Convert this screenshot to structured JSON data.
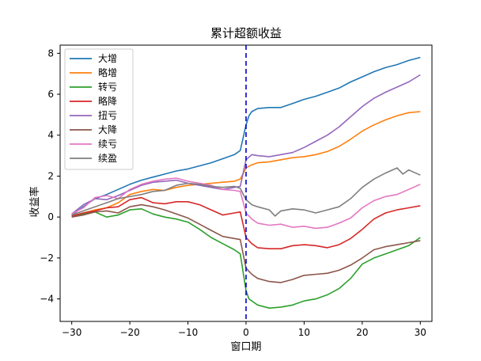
{
  "chart_data": {
    "type": "line",
    "title": "累计超额收益",
    "xlabel": "窗口期",
    "ylabel": "收益率",
    "xlim": [
      -32,
      32
    ],
    "ylim": [
      -5.1,
      8.4
    ],
    "xticks": [
      -30,
      -20,
      -10,
      0,
      10,
      20,
      30
    ],
    "yticks": [
      -4,
      -2,
      0,
      2,
      4,
      6,
      8
    ],
    "xtick_labels": [
      "−30",
      "−20",
      "−10",
      "0",
      "10",
      "20",
      "30"
    ],
    "ytick_labels": [
      "−4",
      "−2",
      "0",
      "2",
      "4",
      "6",
      "8"
    ],
    "vline": {
      "x": 0,
      "color": "#0000cc",
      "style": "dashed"
    },
    "legend_position": "upper-left",
    "grid": false,
    "series": [
      {
        "name": "大增",
        "color": "#1f77b4",
        "points": [
          [
            -30,
            0.1
          ],
          [
            -28,
            0.5
          ],
          [
            -26,
            0.9
          ],
          [
            -24,
            1.1
          ],
          [
            -22,
            1.35
          ],
          [
            -20,
            1.6
          ],
          [
            -18,
            1.8
          ],
          [
            -16,
            1.95
          ],
          [
            -14,
            2.1
          ],
          [
            -12,
            2.25
          ],
          [
            -10,
            2.35
          ],
          [
            -8,
            2.5
          ],
          [
            -6,
            2.65
          ],
          [
            -4,
            2.85
          ],
          [
            -2,
            3.05
          ],
          [
            -1,
            3.25
          ],
          [
            0,
            4.5
          ],
          [
            0.5,
            4.95
          ],
          [
            1,
            5.15
          ],
          [
            2,
            5.3
          ],
          [
            4,
            5.35
          ],
          [
            6,
            5.35
          ],
          [
            8,
            5.55
          ],
          [
            10,
            5.75
          ],
          [
            12,
            5.9
          ],
          [
            14,
            6.1
          ],
          [
            16,
            6.3
          ],
          [
            18,
            6.6
          ],
          [
            20,
            6.85
          ],
          [
            22,
            7.1
          ],
          [
            24,
            7.3
          ],
          [
            26,
            7.45
          ],
          [
            28,
            7.65
          ],
          [
            30,
            7.8
          ]
        ]
      },
      {
        "name": "略增",
        "color": "#ff7f0e",
        "points": [
          [
            -30,
            0.05
          ],
          [
            -28,
            0.2
          ],
          [
            -26,
            0.35
          ],
          [
            -24,
            0.45
          ],
          [
            -22,
            0.7
          ],
          [
            -20,
            1.1
          ],
          [
            -18,
            1.25
          ],
          [
            -16,
            1.35
          ],
          [
            -14,
            1.3
          ],
          [
            -12,
            1.45
          ],
          [
            -10,
            1.55
          ],
          [
            -8,
            1.6
          ],
          [
            -6,
            1.65
          ],
          [
            -4,
            1.7
          ],
          [
            -2,
            1.75
          ],
          [
            -1,
            1.85
          ],
          [
            0,
            2.4
          ],
          [
            1,
            2.55
          ],
          [
            2,
            2.65
          ],
          [
            4,
            2.7
          ],
          [
            6,
            2.8
          ],
          [
            8,
            2.9
          ],
          [
            10,
            2.95
          ],
          [
            12,
            3.05
          ],
          [
            14,
            3.2
          ],
          [
            16,
            3.45
          ],
          [
            18,
            3.8
          ],
          [
            20,
            4.2
          ],
          [
            22,
            4.5
          ],
          [
            24,
            4.75
          ],
          [
            26,
            4.95
          ],
          [
            28,
            5.1
          ],
          [
            30,
            5.15
          ]
        ]
      },
      {
        "name": "转亏",
        "color": "#2ca02c",
        "points": [
          [
            -30,
            0.05
          ],
          [
            -28,
            0.15
          ],
          [
            -26,
            0.25
          ],
          [
            -24,
            0.0
          ],
          [
            -22,
            0.1
          ],
          [
            -20,
            0.35
          ],
          [
            -18,
            0.4
          ],
          [
            -16,
            0.15
          ],
          [
            -14,
            0.0
          ],
          [
            -12,
            -0.1
          ],
          [
            -10,
            -0.25
          ],
          [
            -8,
            -0.6
          ],
          [
            -6,
            -1.0
          ],
          [
            -4,
            -1.3
          ],
          [
            -2,
            -1.6
          ],
          [
            -1,
            -1.8
          ],
          [
            0,
            -3.6
          ],
          [
            0.5,
            -4.0
          ],
          [
            2,
            -4.3
          ],
          [
            4,
            -4.45
          ],
          [
            6,
            -4.4
          ],
          [
            8,
            -4.3
          ],
          [
            10,
            -4.1
          ],
          [
            12,
            -4.0
          ],
          [
            14,
            -3.8
          ],
          [
            16,
            -3.5
          ],
          [
            18,
            -3.0
          ],
          [
            20,
            -2.3
          ],
          [
            22,
            -2.0
          ],
          [
            24,
            -1.8
          ],
          [
            26,
            -1.6
          ],
          [
            28,
            -1.4
          ],
          [
            30,
            -1.0
          ]
        ]
      },
      {
        "name": "略降",
        "color": "#d62728",
        "points": [
          [
            -30,
            0.05
          ],
          [
            -28,
            0.2
          ],
          [
            -26,
            0.3
          ],
          [
            -24,
            0.45
          ],
          [
            -22,
            0.5
          ],
          [
            -20,
            0.85
          ],
          [
            -18,
            0.95
          ],
          [
            -16,
            0.7
          ],
          [
            -14,
            0.65
          ],
          [
            -12,
            0.75
          ],
          [
            -10,
            0.75
          ],
          [
            -8,
            0.6
          ],
          [
            -6,
            0.35
          ],
          [
            -4,
            0.1
          ],
          [
            -2,
            0.2
          ],
          [
            -1,
            0.25
          ],
          [
            0,
            -1.0
          ],
          [
            1,
            -1.3
          ],
          [
            2,
            -1.5
          ],
          [
            4,
            -1.55
          ],
          [
            6,
            -1.55
          ],
          [
            8,
            -1.4
          ],
          [
            10,
            -1.35
          ],
          [
            12,
            -1.4
          ],
          [
            14,
            -1.5
          ],
          [
            16,
            -1.35
          ],
          [
            18,
            -1.05
          ],
          [
            20,
            -0.6
          ],
          [
            22,
            -0.1
          ],
          [
            24,
            0.2
          ],
          [
            26,
            0.35
          ],
          [
            28,
            0.45
          ],
          [
            30,
            0.55
          ]
        ]
      },
      {
        "name": "扭亏",
        "color": "#9467bd",
        "points": [
          [
            -30,
            0.15
          ],
          [
            -28,
            0.6
          ],
          [
            -26,
            0.9
          ],
          [
            -24,
            0.85
          ],
          [
            -22,
            1.05
          ],
          [
            -20,
            1.3
          ],
          [
            -18,
            1.55
          ],
          [
            -16,
            1.7
          ],
          [
            -14,
            1.75
          ],
          [
            -12,
            1.8
          ],
          [
            -10,
            1.65
          ],
          [
            -8,
            1.55
          ],
          [
            -6,
            1.45
          ],
          [
            -4,
            1.35
          ],
          [
            -2,
            1.45
          ],
          [
            -1,
            1.5
          ],
          [
            0,
            2.8
          ],
          [
            1,
            3.05
          ],
          [
            2,
            3.0
          ],
          [
            4,
            2.95
          ],
          [
            6,
            3.05
          ],
          [
            8,
            3.15
          ],
          [
            10,
            3.4
          ],
          [
            12,
            3.7
          ],
          [
            14,
            4.0
          ],
          [
            16,
            4.4
          ],
          [
            18,
            4.9
          ],
          [
            20,
            5.4
          ],
          [
            22,
            5.8
          ],
          [
            24,
            6.1
          ],
          [
            26,
            6.35
          ],
          [
            28,
            6.6
          ],
          [
            30,
            6.95
          ]
        ]
      },
      {
        "name": "大降",
        "color": "#8c564b",
        "points": [
          [
            -30,
            0.0
          ],
          [
            -28,
            0.1
          ],
          [
            -26,
            0.25
          ],
          [
            -24,
            0.3
          ],
          [
            -22,
            0.2
          ],
          [
            -20,
            0.5
          ],
          [
            -18,
            0.6
          ],
          [
            -16,
            0.5
          ],
          [
            -14,
            0.35
          ],
          [
            -12,
            0.15
          ],
          [
            -10,
            -0.05
          ],
          [
            -8,
            -0.35
          ],
          [
            -6,
            -0.65
          ],
          [
            -4,
            -0.95
          ],
          [
            -2,
            -1.05
          ],
          [
            -1,
            -1.1
          ],
          [
            0,
            -2.5
          ],
          [
            1,
            -2.8
          ],
          [
            2,
            -3.0
          ],
          [
            4,
            -3.15
          ],
          [
            6,
            -3.2
          ],
          [
            8,
            -3.05
          ],
          [
            10,
            -2.85
          ],
          [
            12,
            -2.8
          ],
          [
            14,
            -2.75
          ],
          [
            16,
            -2.6
          ],
          [
            18,
            -2.35
          ],
          [
            20,
            -2.0
          ],
          [
            22,
            -1.6
          ],
          [
            24,
            -1.45
          ],
          [
            26,
            -1.35
          ],
          [
            28,
            -1.25
          ],
          [
            30,
            -1.15
          ]
        ]
      },
      {
        "name": "续亏",
        "color": "#e377c2",
        "points": [
          [
            -30,
            0.15
          ],
          [
            -28,
            0.45
          ],
          [
            -26,
            0.95
          ],
          [
            -24,
            1.05
          ],
          [
            -22,
            0.9
          ],
          [
            -20,
            1.35
          ],
          [
            -18,
            1.6
          ],
          [
            -16,
            1.75
          ],
          [
            -14,
            1.85
          ],
          [
            -12,
            1.9
          ],
          [
            -10,
            1.75
          ],
          [
            -8,
            1.65
          ],
          [
            -6,
            1.55
          ],
          [
            -4,
            1.35
          ],
          [
            -2,
            1.3
          ],
          [
            -1,
            1.25
          ],
          [
            0,
            0.2
          ],
          [
            1,
            -0.1
          ],
          [
            2,
            -0.3
          ],
          [
            4,
            -0.4
          ],
          [
            6,
            -0.35
          ],
          [
            8,
            -0.5
          ],
          [
            10,
            -0.45
          ],
          [
            12,
            -0.55
          ],
          [
            14,
            -0.5
          ],
          [
            16,
            -0.3
          ],
          [
            18,
            -0.05
          ],
          [
            20,
            0.45
          ],
          [
            22,
            0.8
          ],
          [
            24,
            1.0
          ],
          [
            26,
            1.1
          ],
          [
            28,
            1.35
          ],
          [
            30,
            1.6
          ]
        ]
      },
      {
        "name": "续盈",
        "color": "#7f7f7f",
        "points": [
          [
            -30,
            0.1
          ],
          [
            -28,
            0.3
          ],
          [
            -26,
            0.5
          ],
          [
            -24,
            0.7
          ],
          [
            -22,
            0.9
          ],
          [
            -20,
            1.0
          ],
          [
            -18,
            1.1
          ],
          [
            -16,
            1.25
          ],
          [
            -14,
            1.3
          ],
          [
            -12,
            1.55
          ],
          [
            -10,
            1.65
          ],
          [
            -8,
            1.6
          ],
          [
            -6,
            1.5
          ],
          [
            -4,
            1.45
          ],
          [
            -2,
            1.5
          ],
          [
            -1,
            1.4
          ],
          [
            0,
            0.85
          ],
          [
            1,
            0.6
          ],
          [
            2,
            0.5
          ],
          [
            4,
            0.35
          ],
          [
            5,
            0.05
          ],
          [
            6,
            0.3
          ],
          [
            8,
            0.4
          ],
          [
            10,
            0.35
          ],
          [
            12,
            0.2
          ],
          [
            14,
            0.35
          ],
          [
            16,
            0.5
          ],
          [
            18,
            0.9
          ],
          [
            20,
            1.45
          ],
          [
            22,
            1.85
          ],
          [
            24,
            2.15
          ],
          [
            26,
            2.4
          ],
          [
            27,
            2.1
          ],
          [
            28,
            2.3
          ],
          [
            30,
            2.05
          ]
        ]
      }
    ]
  }
}
